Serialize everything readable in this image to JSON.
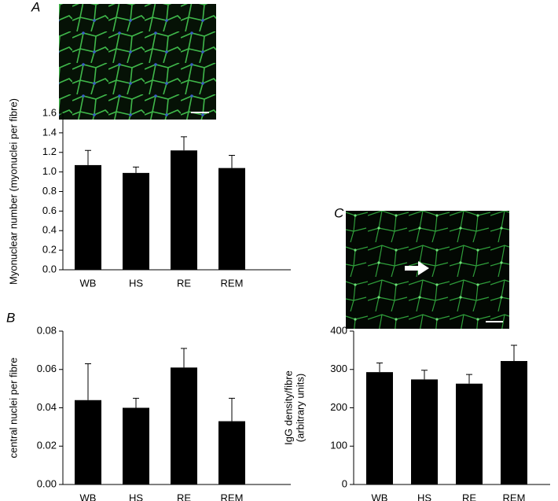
{
  "chart_data": [
    {
      "type": "bar",
      "panel": "A",
      "y_label": [
        "Myonuclear number (myonuclei per fibre)"
      ],
      "categories": [
        "WB",
        "HS",
        "RE",
        "REM"
      ],
      "values": [
        1.07,
        0.99,
        1.22,
        1.04
      ],
      "errors": [
        0.15,
        0.06,
        0.14,
        0.13
      ],
      "color": "#000000",
      "ylim": [
        0,
        1.6
      ],
      "yticks": [
        {
          "value": 0,
          "label": "0.0"
        },
        0.2,
        0.4,
        0.6,
        0.8,
        {
          "value": 1,
          "label": "1.0"
        },
        1.2,
        1.4,
        1.6
      ]
    },
    {
      "type": "bar",
      "panel": "B",
      "y_label": [
        "central nuclei per fibre"
      ],
      "categories": [
        "WB",
        "HS",
        "RE",
        "REM"
      ],
      "values": [
        0.044,
        0.04,
        0.061,
        0.033
      ],
      "errors": [
        0.019,
        0.005,
        0.01,
        0.012
      ],
      "color": "#000000",
      "ylim": [
        0,
        0.08
      ],
      "yticks": [
        {
          "value": 0,
          "label": "0.00"
        },
        {
          "value": 0.02,
          "label": "0.02"
        },
        {
          "value": 0.04,
          "label": "0.04"
        },
        {
          "value": 0.06,
          "label": "0.06"
        },
        {
          "value": 0.08,
          "label": "0.08"
        }
      ]
    },
    {
      "type": "bar",
      "panel": "C",
      "y_label": [
        "IgG density/fibre",
        "(arbitrary units)"
      ],
      "categories": [
        "WB",
        "HS",
        "RE",
        "REM"
      ],
      "values": [
        293,
        274,
        263,
        322
      ],
      "errors": [
        24,
        24,
        24,
        41
      ],
      "color": "#000000",
      "ylim": [
        0,
        400
      ],
      "yticks": [
        0,
        100,
        200,
        300,
        400
      ]
    }
  ]
}
